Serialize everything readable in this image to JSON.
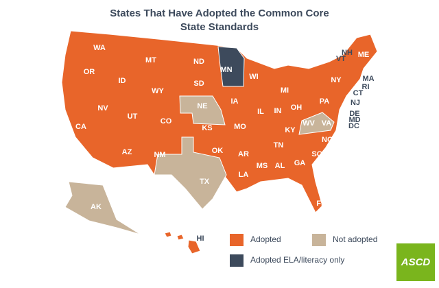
{
  "title_lines": [
    "States That Have Adopted the Common Core",
    "State Standards"
  ],
  "legend": [
    {
      "label": "Adopted",
      "color": "#e8652a"
    },
    {
      "label": "Not adopted",
      "color": "#c8b49a"
    },
    {
      "label": "Adopted ELA/literacy only",
      "color": "#3d4a5c"
    }
  ],
  "states": [
    {
      "label": "WA",
      "legend": 0
    },
    {
      "label": "OR",
      "legend": 0
    },
    {
      "label": "CA",
      "legend": 0
    },
    {
      "label": "NV",
      "legend": 0
    },
    {
      "label": "ID",
      "legend": 0
    },
    {
      "label": "MT",
      "legend": 0
    },
    {
      "label": "WY",
      "legend": 0
    },
    {
      "label": "UT",
      "legend": 0
    },
    {
      "label": "AZ",
      "legend": 0
    },
    {
      "label": "CO",
      "legend": 0
    },
    {
      "label": "NM",
      "legend": 0
    },
    {
      "label": "ND",
      "legend": 0
    },
    {
      "label": "SD",
      "legend": 0
    },
    {
      "label": "NE",
      "legend": 1
    },
    {
      "label": "KS",
      "legend": 0
    },
    {
      "label": "OK",
      "legend": 0
    },
    {
      "label": "TX",
      "legend": 1
    },
    {
      "label": "MN",
      "legend": 2
    },
    {
      "label": "IA",
      "legend": 0
    },
    {
      "label": "MO",
      "legend": 0
    },
    {
      "label": "AR",
      "legend": 0
    },
    {
      "label": "LA",
      "legend": 0
    },
    {
      "label": "WI",
      "legend": 0
    },
    {
      "label": "IL",
      "legend": 0
    },
    {
      "label": "MS",
      "legend": 0
    },
    {
      "label": "MI",
      "legend": 0
    },
    {
      "label": "IN",
      "legend": 0
    },
    {
      "label": "OH",
      "legend": 0
    },
    {
      "label": "KY",
      "legend": 0
    },
    {
      "label": "TN",
      "legend": 0
    },
    {
      "label": "AL",
      "legend": 0
    },
    {
      "label": "GA",
      "legend": 0
    },
    {
      "label": "FL",
      "legend": 0
    },
    {
      "label": "SC",
      "legend": 0
    },
    {
      "label": "NC",
      "legend": 0
    },
    {
      "label": "WV",
      "legend": 0
    },
    {
      "label": "VA",
      "legend": 1
    },
    {
      "label": "PA",
      "legend": 0
    },
    {
      "label": "NY",
      "legend": 0
    },
    {
      "label": "ME",
      "legend": 0
    },
    {
      "label": "NH",
      "legend": 0
    },
    {
      "label": "VT",
      "legend": 0
    },
    {
      "label": "MA",
      "legend": 0
    },
    {
      "label": "RI",
      "legend": 0
    },
    {
      "label": "CT",
      "legend": 0
    },
    {
      "label": "NJ",
      "legend": 0
    },
    {
      "label": "DE",
      "legend": 0
    },
    {
      "label": "MD",
      "legend": 0
    },
    {
      "label": "DC",
      "legend": 0
    },
    {
      "label": "AK",
      "legend": 1
    },
    {
      "label": "HI",
      "legend": 0
    }
  ],
  "logo": "ASCD"
}
